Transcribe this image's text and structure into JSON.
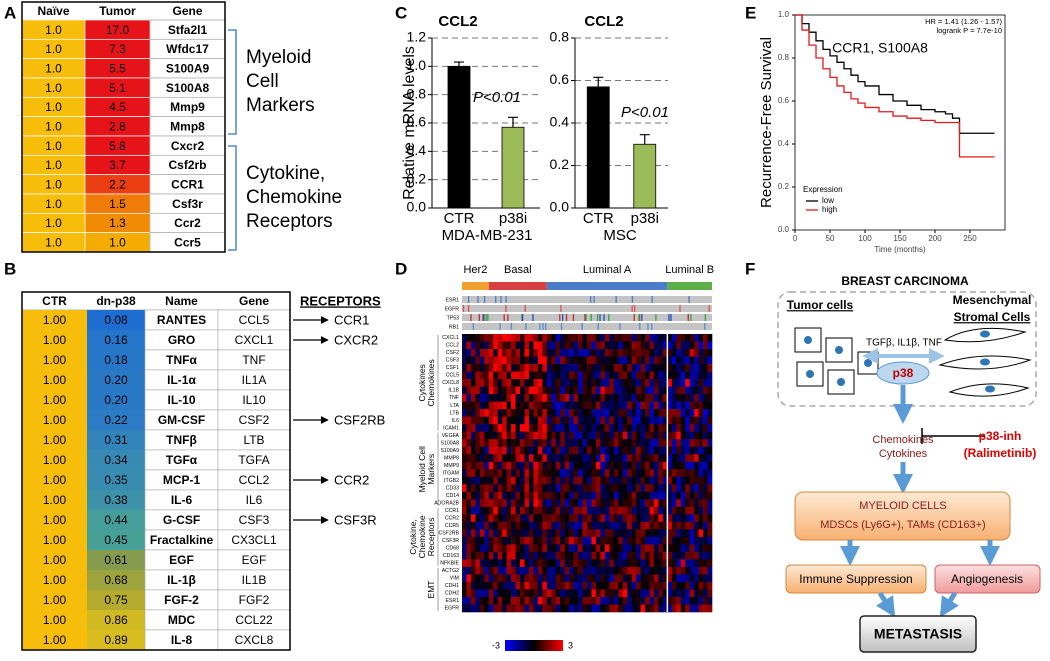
{
  "panel_labels": [
    "A",
    "B",
    "C",
    "D",
    "E",
    "F"
  ],
  "table_a": {
    "header": [
      "Naïve",
      "Tumor",
      "Gene"
    ],
    "rows": [
      [
        "1.0",
        "17.0",
        "Stfa2l1"
      ],
      [
        "1.0",
        "7.3",
        "Wfdc17"
      ],
      [
        "1.0",
        "5.5",
        "S100A9"
      ],
      [
        "1.0",
        "5.1",
        "S100A8"
      ],
      [
        "1.0",
        "4.5",
        "Mmp9"
      ],
      [
        "1.0",
        "2.8",
        "Mmp8"
      ],
      [
        "1.0",
        "5.8",
        "Cxcr2"
      ],
      [
        "1.0",
        "3.7",
        "Csf2rb"
      ],
      [
        "1.0",
        "2.2",
        "CCR1"
      ],
      [
        "1.0",
        "1.5",
        "Csf3r"
      ],
      [
        "1.0",
        "1.3",
        "Ccr2"
      ],
      [
        "1.0",
        "1.0",
        "Ccr5"
      ]
    ],
    "groups": [
      [
        "Myeloid",
        "Cell",
        "Markers"
      ],
      [
        "Cytokine,",
        "Chemokine",
        "Receptors"
      ]
    ]
  },
  "table_b": {
    "header": [
      "CTR",
      "dn-p38",
      "Name",
      "Gene"
    ],
    "receptors_title": "RECEPTORS",
    "rows": [
      {
        "cells": [
          "1.00",
          "0.08",
          "RANTES",
          "CCL5"
        ],
        "receptor": "CCR1"
      },
      {
        "cells": [
          "1.00",
          "0.16",
          "GRO",
          "CXCL1"
        ],
        "receptor": "CXCR2"
      },
      {
        "cells": [
          "1.00",
          "0.18",
          "TNFα",
          "TNF"
        ]
      },
      {
        "cells": [
          "1.00",
          "0.20",
          "IL-1α",
          "IL1A"
        ]
      },
      {
        "cells": [
          "1.00",
          "0.20",
          "IL-10",
          "IL10"
        ]
      },
      {
        "cells": [
          "1.00",
          "0.22",
          "GM-CSF",
          "CSF2"
        ],
        "receptor": "CSF2RB"
      },
      {
        "cells": [
          "1.00",
          "0.31",
          "TNFβ",
          "LTB"
        ]
      },
      {
        "cells": [
          "1.00",
          "0.34",
          "TGFα",
          "TGFA"
        ]
      },
      {
        "cells": [
          "1.00",
          "0.35",
          "MCP-1",
          "CCL2"
        ],
        "receptor": "CCR2"
      },
      {
        "cells": [
          "1.00",
          "0.38",
          "IL-6",
          "IL6"
        ]
      },
      {
        "cells": [
          "1.00",
          "0.44",
          "G-CSF",
          "CSF3"
        ],
        "receptor": "CSF3R"
      },
      {
        "cells": [
          "1.00",
          "0.45",
          "Fractalkine",
          "CX3CL1"
        ]
      },
      {
        "cells": [
          "1.00",
          "0.61",
          "EGF",
          "EGF"
        ]
      },
      {
        "cells": [
          "1.00",
          "0.68",
          "IL-1β",
          "IL1B"
        ]
      },
      {
        "cells": [
          "1.00",
          "0.75",
          "FGF-2",
          "FGF2"
        ]
      },
      {
        "cells": [
          "1.00",
          "0.86",
          "MDC",
          "CCL22"
        ]
      },
      {
        "cells": [
          "1.00",
          "0.89",
          "IL-8",
          "CXCL8"
        ]
      }
    ]
  },
  "chart_data": [
    {
      "type": "bar",
      "title": "CCL2",
      "ylabel": "Relative mRNA levels",
      "xlabel": "MDA-MB-231",
      "categories": [
        "CTR",
        "p38i"
      ],
      "values": [
        1.0,
        0.57
      ],
      "errors": [
        0.03,
        0.07
      ],
      "colors": [
        "#000000",
        "#9bbb59"
      ],
      "ylim": [
        0,
        1.2
      ],
      "yticks": [
        {
          "value": 0,
          "label": "0.0"
        },
        0.2,
        0.4,
        0.6,
        0.8,
        {
          "value": 1,
          "label": "1.0"
        },
        1.2
      ],
      "grid": true,
      "annotation": "P<0.01"
    },
    {
      "type": "bar",
      "title": "CCL2",
      "xlabel": "MSC",
      "categories": [
        "CTR",
        "p38i"
      ],
      "values": [
        0.57,
        0.3
      ],
      "errors": [
        0.045,
        0.045
      ],
      "colors": [
        "#000000",
        "#9bbb59"
      ],
      "ylim": [
        0,
        0.8
      ],
      "yticks": [
        {
          "value": 0,
          "label": "0.0"
        },
        0.2,
        0.4,
        0.6,
        0.8
      ],
      "grid": true,
      "annotation": "P<0.01"
    },
    {
      "type": "line",
      "step": true,
      "title": "CCR1, S100A8",
      "ylabel": "Recurrence-Free Survival",
      "xlabel": "Time (months)",
      "annotations": [
        "HR = 1.41 (1.26 - 1.57)",
        "logrank P = 7.7e-10"
      ],
      "legend_title": "Expression",
      "legend": "lower left",
      "series": [
        {
          "name": "low",
          "color": "#000000",
          "x": [
            0,
            10,
            20,
            30,
            40,
            50,
            60,
            70,
            80,
            90,
            100,
            120,
            140,
            160,
            180,
            200,
            215,
            225,
            235,
            250,
            270,
            285
          ],
          "values": [
            1,
            0.96,
            0.92,
            0.88,
            0.84,
            0.81,
            0.78,
            0.75,
            0.72,
            0.69,
            0.67,
            0.63,
            0.6,
            0.58,
            0.56,
            0.55,
            0.54,
            0.52,
            0.45,
            0.45,
            0.45,
            0.45
          ]
        },
        {
          "name": "high",
          "color": "#e31a1c",
          "x": [
            0,
            10,
            20,
            30,
            40,
            50,
            60,
            70,
            80,
            90,
            100,
            120,
            140,
            160,
            180,
            200,
            220,
            235,
            260,
            285
          ],
          "values": [
            1,
            0.93,
            0.86,
            0.8,
            0.75,
            0.71,
            0.67,
            0.64,
            0.61,
            0.59,
            0.57,
            0.55,
            0.53,
            0.52,
            0.51,
            0.5,
            0.5,
            0.34,
            0.34,
            0.34
          ]
        }
      ],
      "xlim": [
        0,
        300
      ],
      "xticks": [
        0,
        50,
        100,
        150,
        200,
        250
      ],
      "ylim": [
        0,
        1
      ],
      "yticks": [
        {
          "value": 0,
          "label": "0.0"
        },
        0.2,
        0.4,
        0.6,
        0.8,
        {
          "value": 1,
          "label": "1.0"
        }
      ]
    }
  ],
  "heatmap": {
    "groups": [
      "Her2",
      "Basal",
      "Luminal A",
      "Luminal B"
    ],
    "tracks": [
      "ESR1",
      "EGFR",
      "TP53",
      "RB1"
    ],
    "gene_groups": [
      {
        "label": [
          "Cytokines",
          "Chemokines"
        ],
        "genes": [
          "CXCL1",
          "CCL2",
          "CSF2",
          "CSF3",
          "CSF1",
          "CCL5",
          "CXCL8",
          "IL1B",
          "TNF",
          "LTA",
          "LTB",
          "IL6",
          "ICAM1"
        ]
      },
      {
        "label": [
          "Myeloid Cell",
          "Markers"
        ],
        "genes": [
          "VEGFA",
          "S100A8",
          "S100A9",
          "MMP8",
          "MMP9",
          "ITGAM",
          "ITGB2",
          "CD33",
          "CD14",
          "ADORA2B"
        ]
      },
      {
        "label": [
          "Cytokine,",
          "Chemokine",
          "Receptors"
        ],
        "genes": [
          "CCR1",
          "CCR2",
          "CCR5",
          "CSF2RB",
          "CSF3R",
          "CD68",
          "CD163",
          "NFKBIE"
        ]
      },
      {
        "label": [
          "EMT"
        ],
        "genes": [
          "ACTG2",
          "VIM",
          "CDH1",
          "CDH2",
          "ESR1",
          "EGFR"
        ]
      }
    ],
    "colorbar": [
      "-3",
      "3"
    ]
  },
  "diagram": {
    "title": "BREAST CARCINOMA",
    "tumor": "Tumor cells",
    "stromal": [
      "Mesenchymal",
      "Stromal Cells"
    ],
    "signals": "TGFβ, IL1β, TNF",
    "kinase": "p38",
    "inhibitor": [
      "p38-inh",
      "(Ralimetinib)"
    ],
    "secreted": [
      "Chemokines",
      "Cytokines"
    ],
    "myeloid": [
      "MYELOID CELLS",
      "MDSCs (Ly6G+), TAMs (CD163+)"
    ],
    "outcomes": [
      "Immune Suppression",
      "Angiogenesis"
    ],
    "final": "METASTASIS"
  }
}
